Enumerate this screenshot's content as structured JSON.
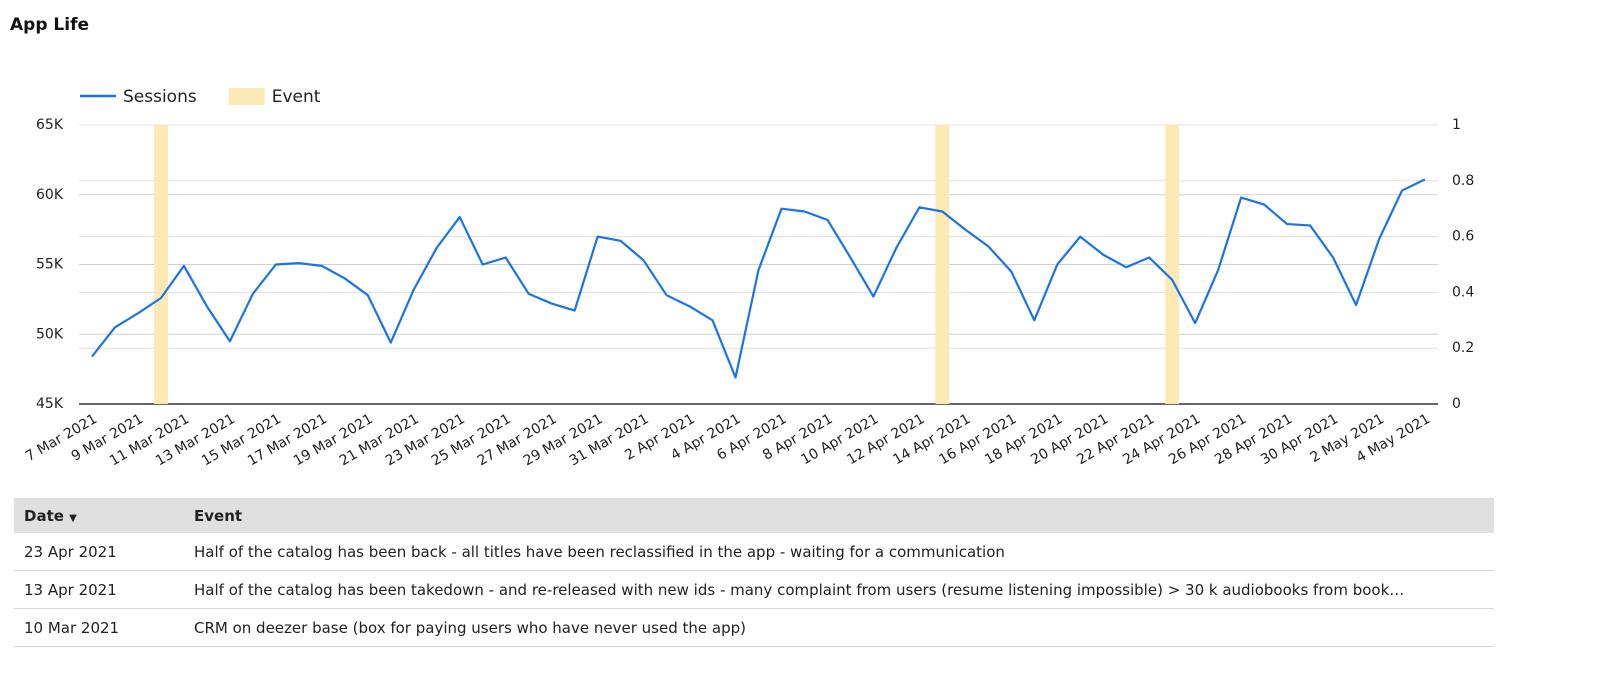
{
  "header": {
    "title": "App Life"
  },
  "chart_data": {
    "type": "line",
    "categories": [
      "7 Mar 2021",
      null,
      "9 Mar 2021",
      null,
      "11 Mar 2021",
      null,
      "13 Mar 2021",
      null,
      "15 Mar 2021",
      null,
      "17 Mar 2021",
      null,
      "19 Mar 2021",
      null,
      "21 Mar 2021",
      null,
      "23 Mar 2021",
      null,
      "25 Mar 2021",
      null,
      "27 Mar 2021",
      null,
      "29 Mar 2021",
      null,
      "31 Mar 2021",
      null,
      "2 Apr 2021",
      null,
      "4 Apr 2021",
      null,
      "6 Apr 2021",
      null,
      "8 Apr 2021",
      null,
      "10 Apr 2021",
      null,
      "12 Apr 2021",
      null,
      "14 Apr 2021",
      null,
      "16 Apr 2021",
      null,
      "18 Apr 2021",
      null,
      "20 Apr 2021",
      null,
      "22 Apr 2021",
      null,
      "24 Apr 2021",
      null,
      "26 Apr 2021",
      null,
      "28 Apr 2021",
      null,
      "30 Apr 2021",
      null,
      "2 May 2021",
      null,
      "4 May 2021"
    ],
    "series": [
      {
        "name": "Sessions",
        "type": "line",
        "color": "#1a73e8",
        "values": [
          48400,
          50500,
          51500,
          52600,
          54900,
          52000,
          49500,
          52900,
          55000,
          55100,
          54900,
          54000,
          52800,
          49400,
          53200,
          56200,
          58400,
          55000,
          55500,
          52900,
          52200,
          51700,
          57000,
          56700,
          55300,
          52800,
          52000,
          51000,
          46900,
          54600,
          59000,
          58800,
          58200,
          55500,
          52700,
          56200,
          59100,
          58800,
          57500,
          56300,
          54500,
          51000,
          55000,
          57000,
          55700,
          54800,
          55500,
          53900,
          50800,
          54600,
          59800,
          59300,
          57900,
          57800,
          55500,
          52100,
          56800,
          60300,
          61100
        ]
      },
      {
        "name": "Event",
        "type": "bar",
        "axis": "y2",
        "color": "#fde9b4",
        "values": [
          null,
          null,
          null,
          1,
          null,
          null,
          null,
          null,
          null,
          null,
          null,
          null,
          null,
          null,
          null,
          null,
          null,
          null,
          null,
          null,
          null,
          null,
          null,
          null,
          null,
          null,
          null,
          null,
          null,
          null,
          null,
          null,
          null,
          null,
          null,
          null,
          null,
          1,
          null,
          null,
          null,
          null,
          null,
          null,
          null,
          null,
          null,
          1,
          null,
          null,
          null,
          null,
          null,
          null,
          null,
          null,
          null,
          null,
          null
        ]
      }
    ],
    "ylim": [
      45000,
      65000
    ],
    "yticks": [
      {
        "value": 45000,
        "label": "45K"
      },
      {
        "value": 50000,
        "label": "50K"
      },
      {
        "value": 55000,
        "label": "55K"
      },
      {
        "value": 60000,
        "label": "60K"
      },
      {
        "value": 65000,
        "label": "65K"
      }
    ],
    "y2lim": [
      0,
      1
    ],
    "y2ticks": [
      0,
      0.2,
      0.4,
      0.6,
      0.8,
      1
    ],
    "grid": true
  },
  "table": {
    "columns": [
      "Date",
      "Event"
    ],
    "rows": [
      [
        "23 Apr 2021",
        "Half of the catalog has been back - all titles have been reclassified in the app - waiting for a communication"
      ],
      [
        "13 Apr 2021",
        "Half of the catalog has been takedown - and re-released with new ids - many complaint from users (resume listening impossible) > 30 k audiobooks from book…"
      ],
      [
        "10 Mar 2021",
        "CRM on deezer base (box for paying users who have never used the app)"
      ]
    ]
  }
}
